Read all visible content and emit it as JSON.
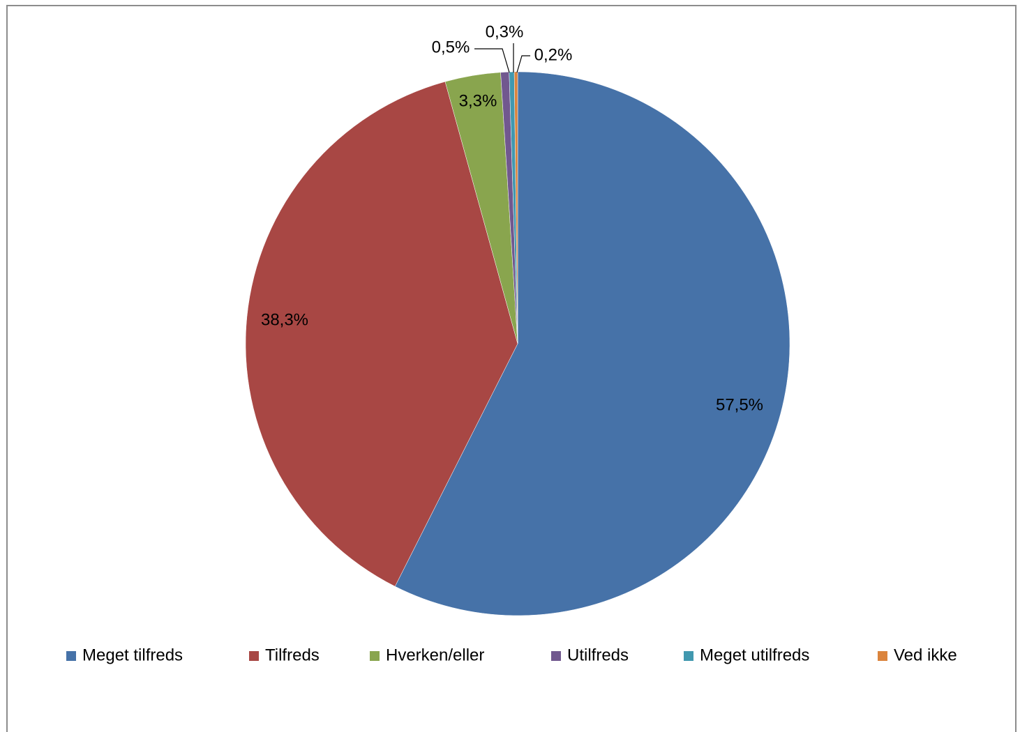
{
  "chart_data": {
    "type": "pie",
    "categories": [
      "Meget tilfreds",
      "Tilfreds",
      "Hverken/eller",
      "Utilfreds",
      "Meget utilfreds",
      "Ved ikke"
    ],
    "values": [
      57.5,
      38.3,
      3.3,
      0.5,
      0.3,
      0.2
    ],
    "value_labels": [
      "57,5%",
      "38,3%",
      "3,3%",
      "0,5%",
      "0,3%",
      "0,2%"
    ],
    "colors": [
      "#4672a8",
      "#a84744",
      "#89a54e",
      "#71588f",
      "#4198af",
      "#db843d"
    ],
    "legend": "bottom"
  }
}
